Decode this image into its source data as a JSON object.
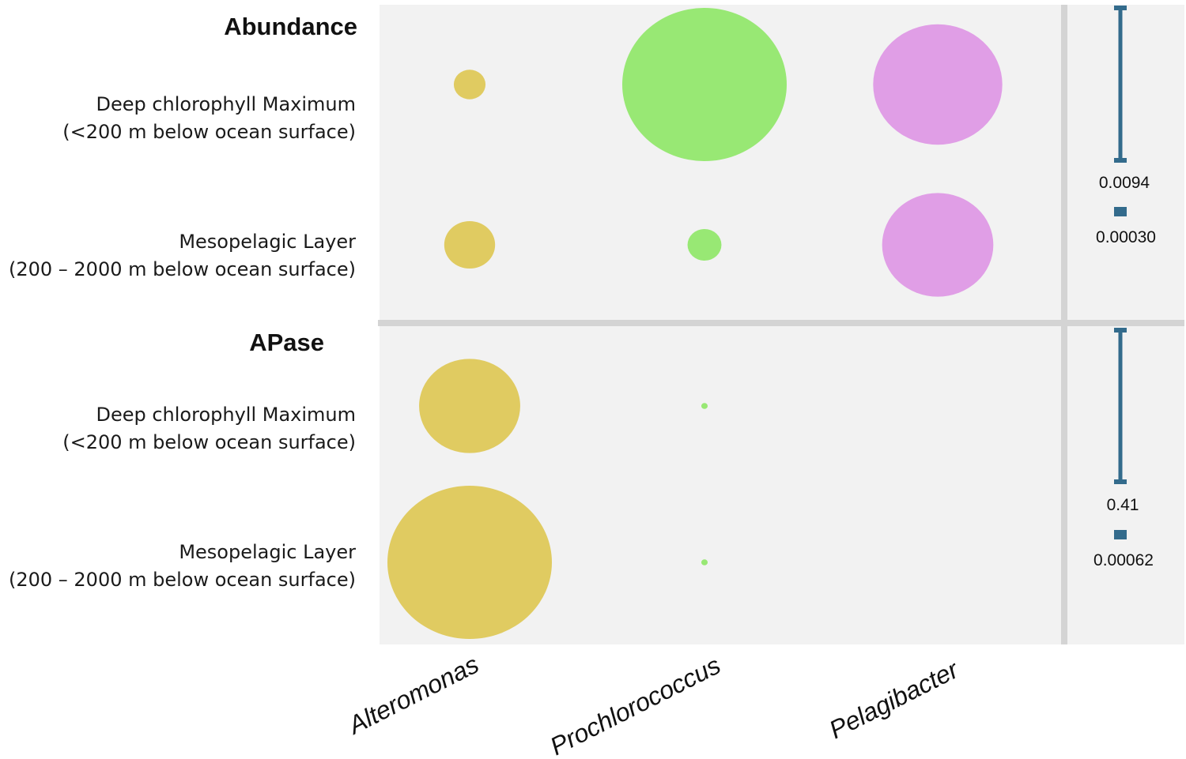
{
  "chart_data": {
    "type": "bubble",
    "columns": [
      "Alteromonas",
      "Prochlorococcus",
      "Pelagibacter"
    ],
    "colors": {
      "Alteromonas": "#e0cb61",
      "Prochlorococcus": "#98e874",
      "Pelagibacter": "#e09ee6",
      "panel_background": "#f2f2f2",
      "separator": "#d4d4d4",
      "legend": "#336b8c"
    },
    "panels": [
      {
        "title": "Abundance",
        "rows": [
          {
            "label_line1": "Deep chlorophyll Maximum",
            "label_line2": "(<200 m below ocean surface)"
          },
          {
            "label_line1": "Mesopelagic Layer",
            "label_line2": "(200 – 2000 m below ocean surface)"
          }
        ],
        "values": [
          [
            0.00035,
            0.0094,
            0.0058
          ],
          [
            0.0009,
            0.0004,
            0.0043
          ]
        ],
        "legend": {
          "max_label": "0.0094",
          "min_label": "0.00030",
          "max": 0.0094,
          "min": 0.0003
        }
      },
      {
        "title": "APase",
        "rows": [
          {
            "label_line1": "Deep chlorophyll Maximum",
            "label_line2": "(<200 m below ocean surface)"
          },
          {
            "label_line1": "Mesopelagic Layer",
            "label_line2": "(200 – 2000 m below ocean surface)"
          }
        ],
        "values": [
          [
            0.155,
            0.00062,
            0
          ],
          [
            0.41,
            0.00062,
            0
          ]
        ],
        "legend": {
          "max_label": "0.41",
          "min_label": "0.00062",
          "max": 0.41,
          "min": 0.00062
        }
      }
    ]
  }
}
